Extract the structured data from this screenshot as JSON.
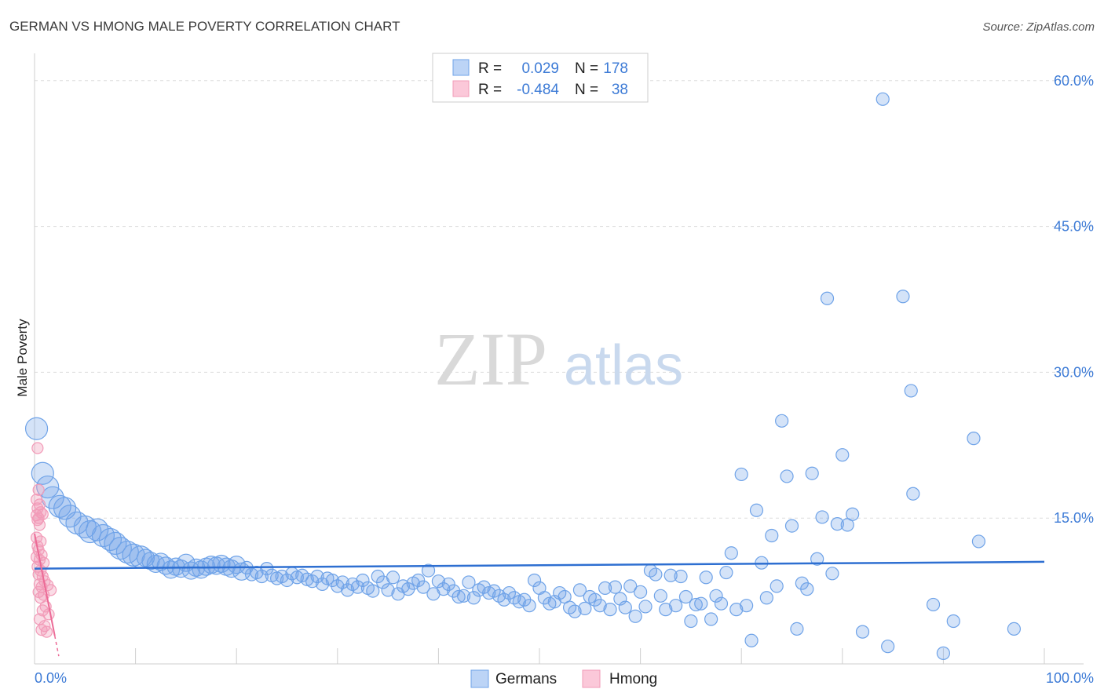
{
  "header": {
    "title": "GERMAN VS HMONG MALE POVERTY CORRELATION CHART",
    "source": "Source: ZipAtlas.com"
  },
  "watermark": {
    "zip": "ZIP",
    "atlas": "atlas"
  },
  "legend": {
    "rows": [
      {
        "r_label": "R =",
        "r_value": "0.029",
        "n_label": "N =",
        "n_value": "178",
        "color": "#6fa3e8"
      },
      {
        "r_label": "R =",
        "r_value": "-0.484",
        "n_label": "N =",
        "n_value": "38",
        "color": "#f29bb8"
      }
    ]
  },
  "bottom_legend": [
    {
      "label": "Germans",
      "color": "#6fa3e8"
    },
    {
      "label": "Hmong",
      "color": "#f29bb8"
    }
  ],
  "chart_data": {
    "type": "scatter",
    "title": "GERMAN VS HMONG MALE POVERTY CORRELATION CHART",
    "xlabel": "",
    "ylabel": "Male Poverty",
    "xlim": [
      0,
      100
    ],
    "ylim": [
      0,
      62
    ],
    "x_tick_labels": [
      "0.0%",
      "100.0%"
    ],
    "y_ticks": [
      15,
      30,
      45,
      60
    ],
    "y_tick_labels": [
      "15.0%",
      "30.0%",
      "45.0%",
      "60.0%"
    ],
    "series": [
      {
        "name": "Germans",
        "color": "#6fa3e8",
        "trend": {
          "x": [
            0,
            100
          ],
          "y": [
            9.8,
            10.5
          ]
        },
        "points": [
          [
            0.2,
            24.2,
            3
          ],
          [
            0.8,
            19.6,
            3
          ],
          [
            1.3,
            18.2,
            3
          ],
          [
            1.8,
            17.1,
            3
          ],
          [
            2.5,
            16.2,
            3
          ],
          [
            3.0,
            16.0,
            3
          ],
          [
            3.5,
            15.2,
            3
          ],
          [
            4.2,
            14.5,
            3
          ],
          [
            5.0,
            14.1,
            3
          ],
          [
            5.5,
            13.6,
            3
          ],
          [
            6.2,
            13.8,
            3
          ],
          [
            6.8,
            13.2,
            3
          ],
          [
            7.5,
            12.8,
            3
          ],
          [
            8.0,
            12.4,
            3
          ],
          [
            8.5,
            11.9,
            3
          ],
          [
            9.2,
            11.5,
            3
          ],
          [
            9.8,
            11.2,
            3
          ],
          [
            10.5,
            11.0,
            3
          ],
          [
            11.0,
            10.9,
            2
          ],
          [
            11.5,
            10.6,
            2
          ],
          [
            12.0,
            10.3,
            2
          ],
          [
            12.5,
            10.5,
            2
          ],
          [
            13.0,
            10.1,
            2
          ],
          [
            13.5,
            9.7,
            2
          ],
          [
            14.0,
            10.0,
            2
          ],
          [
            14.5,
            9.8,
            2
          ],
          [
            15.0,
            10.4,
            2
          ],
          [
            15.5,
            9.6,
            2
          ],
          [
            16.0,
            9.9,
            2
          ],
          [
            16.5,
            9.7,
            2
          ],
          [
            17.0,
            10.0,
            2
          ],
          [
            17.5,
            10.2,
            2
          ],
          [
            18.0,
            10.1,
            2
          ],
          [
            18.5,
            10.3,
            2
          ],
          [
            19.0,
            10.0,
            2
          ],
          [
            19.5,
            9.8,
            2
          ],
          [
            20.0,
            10.2,
            2
          ],
          [
            20.5,
            9.5,
            2
          ],
          [
            21.0,
            9.9,
            1
          ],
          [
            21.5,
            9.2,
            1
          ],
          [
            22.0,
            9.4,
            1
          ],
          [
            22.5,
            9.0,
            1
          ],
          [
            23.0,
            9.8,
            1
          ],
          [
            23.5,
            9.1,
            1
          ],
          [
            24.0,
            8.8,
            1
          ],
          [
            24.5,
            9.0,
            1
          ],
          [
            25.0,
            8.6,
            1
          ],
          [
            25.5,
            9.3,
            1
          ],
          [
            26.0,
            8.9,
            1
          ],
          [
            26.5,
            9.1,
            1
          ],
          [
            27.0,
            8.7,
            1
          ],
          [
            27.5,
            8.5,
            1
          ],
          [
            28.0,
            9.0,
            1
          ],
          [
            28.5,
            8.2,
            1
          ],
          [
            29.0,
            8.8,
            1
          ],
          [
            29.5,
            8.6,
            1
          ],
          [
            30.0,
            8.0,
            1
          ],
          [
            30.5,
            8.4,
            1
          ],
          [
            31.0,
            7.6,
            1
          ],
          [
            31.5,
            8.2,
            1
          ],
          [
            32.0,
            7.9,
            1
          ],
          [
            32.5,
            8.6,
            1
          ],
          [
            33.0,
            7.8,
            1
          ],
          [
            33.5,
            7.5,
            1
          ],
          [
            34.0,
            9.0,
            1
          ],
          [
            34.5,
            8.4,
            1
          ],
          [
            35.0,
            7.6,
            1
          ],
          [
            35.5,
            8.9,
            1
          ],
          [
            36.0,
            7.2,
            1
          ],
          [
            36.5,
            8.0,
            1
          ],
          [
            37.0,
            7.7,
            1
          ],
          [
            37.5,
            8.3,
            1
          ],
          [
            38.0,
            8.6,
            1
          ],
          [
            38.5,
            7.9,
            1
          ],
          [
            39.0,
            9.6,
            1
          ],
          [
            39.5,
            7.2,
            1
          ],
          [
            40.0,
            8.5,
            1
          ],
          [
            40.5,
            7.7,
            1
          ],
          [
            41.0,
            8.2,
            1
          ],
          [
            41.5,
            7.5,
            1
          ],
          [
            42.0,
            6.9,
            1
          ],
          [
            42.5,
            7.0,
            1
          ],
          [
            43.0,
            8.4,
            1
          ],
          [
            43.5,
            6.8,
            1
          ],
          [
            44.0,
            7.6,
            1
          ],
          [
            44.5,
            7.9,
            1
          ],
          [
            45.0,
            7.3,
            1
          ],
          [
            45.5,
            7.5,
            1
          ],
          [
            46.0,
            7.0,
            1
          ],
          [
            46.5,
            6.6,
            1
          ],
          [
            47.0,
            7.3,
            1
          ],
          [
            47.5,
            6.8,
            1
          ],
          [
            48.0,
            6.4,
            1
          ],
          [
            48.5,
            6.6,
            1
          ],
          [
            49.0,
            6.0,
            1
          ],
          [
            49.5,
            8.6,
            1
          ],
          [
            50.0,
            7.8,
            1
          ],
          [
            50.5,
            6.8,
            1
          ],
          [
            51.0,
            6.2,
            1
          ],
          [
            51.5,
            6.4,
            1
          ],
          [
            52.0,
            7.3,
            1
          ],
          [
            52.5,
            6.9,
            1
          ],
          [
            53.0,
            5.8,
            1
          ],
          [
            53.5,
            5.4,
            1
          ],
          [
            54.0,
            7.6,
            1
          ],
          [
            54.5,
            5.7,
            1
          ],
          [
            55.0,
            6.9,
            1
          ],
          [
            55.5,
            6.6,
            1
          ],
          [
            56.0,
            6.0,
            1
          ],
          [
            56.5,
            7.8,
            1
          ],
          [
            57.0,
            5.6,
            1
          ],
          [
            57.5,
            7.9,
            1
          ],
          [
            58.0,
            6.7,
            1
          ],
          [
            58.5,
            5.8,
            1
          ],
          [
            59.0,
            8.0,
            1
          ],
          [
            59.5,
            4.9,
            1
          ],
          [
            60.0,
            7.4,
            1
          ],
          [
            60.5,
            5.9,
            1
          ],
          [
            61.0,
            9.6,
            1
          ],
          [
            61.5,
            9.2,
            1
          ],
          [
            62.0,
            7.0,
            1
          ],
          [
            62.5,
            5.6,
            1
          ],
          [
            63.0,
            9.1,
            1
          ],
          [
            63.5,
            6.0,
            1
          ],
          [
            64.0,
            9.0,
            1
          ],
          [
            64.5,
            6.9,
            1
          ],
          [
            65.0,
            4.4,
            1
          ],
          [
            65.5,
            6.1,
            1
          ],
          [
            66.0,
            6.2,
            1
          ],
          [
            66.5,
            8.9,
            1
          ],
          [
            67.0,
            4.6,
            1
          ],
          [
            67.5,
            7.0,
            1
          ],
          [
            68.0,
            6.2,
            1
          ],
          [
            68.5,
            9.4,
            1
          ],
          [
            69.0,
            11.4,
            1
          ],
          [
            69.5,
            5.6,
            1
          ],
          [
            70.0,
            19.5,
            1
          ],
          [
            70.5,
            6.0,
            1
          ],
          [
            71.0,
            2.4,
            1
          ],
          [
            71.5,
            15.8,
            1
          ],
          [
            72.0,
            10.4,
            1
          ],
          [
            72.5,
            6.8,
            1
          ],
          [
            73.0,
            13.2,
            1
          ],
          [
            73.5,
            8.0,
            1
          ],
          [
            74.0,
            25.0,
            1
          ],
          [
            74.5,
            19.3,
            1
          ],
          [
            75.0,
            14.2,
            1
          ],
          [
            75.5,
            3.6,
            1
          ],
          [
            76.0,
            8.3,
            1
          ],
          [
            76.5,
            7.7,
            1
          ],
          [
            77.0,
            19.6,
            1
          ],
          [
            77.5,
            10.8,
            1
          ],
          [
            78.0,
            15.1,
            1
          ],
          [
            78.5,
            37.6,
            1
          ],
          [
            79.0,
            9.3,
            1
          ],
          [
            79.5,
            14.4,
            1
          ],
          [
            80.0,
            21.5,
            1
          ],
          [
            80.5,
            14.3,
            1
          ],
          [
            81.0,
            15.4,
            1
          ],
          [
            82.0,
            3.3,
            1
          ],
          [
            84.0,
            58.1,
            1
          ],
          [
            84.5,
            1.8,
            1
          ],
          [
            86.0,
            37.8,
            1
          ],
          [
            86.8,
            28.1,
            1
          ],
          [
            87.0,
            17.5,
            1
          ],
          [
            89.0,
            6.1,
            1
          ],
          [
            90.0,
            1.1,
            1
          ],
          [
            91.0,
            4.4,
            1
          ],
          [
            93.0,
            23.2,
            1
          ],
          [
            93.5,
            12.6,
            1
          ],
          [
            97.0,
            3.6,
            1
          ]
        ]
      },
      {
        "name": "Hmong",
        "color": "#f29bb8",
        "trend": {
          "x": [
            0,
            2.0
          ],
          "y": [
            13.4,
            2.9
          ]
        },
        "trend_dashed": {
          "x": [
            2.0,
            2.4
          ],
          "y": [
            2.9,
            0.8
          ]
        },
        "points": [
          [
            0.3,
            22.2,
            1
          ],
          [
            0.4,
            17.9,
            1
          ],
          [
            0.2,
            16.9,
            1
          ],
          [
            0.5,
            16.4,
            1
          ],
          [
            0.3,
            16.0,
            1
          ],
          [
            0.6,
            15.6,
            1
          ],
          [
            0.2,
            15.3,
            1
          ],
          [
            0.4,
            15.0,
            1
          ],
          [
            0.8,
            15.4,
            1
          ],
          [
            0.3,
            14.8,
            1
          ],
          [
            0.5,
            14.3,
            1
          ],
          [
            0.2,
            13.0,
            1
          ],
          [
            0.6,
            12.6,
            1
          ],
          [
            0.3,
            12.1,
            1
          ],
          [
            0.4,
            11.7,
            1
          ],
          [
            0.7,
            11.2,
            1
          ],
          [
            0.2,
            11.0,
            1
          ],
          [
            0.5,
            10.7,
            1
          ],
          [
            0.9,
            10.4,
            1
          ],
          [
            0.3,
            10.0,
            1
          ],
          [
            0.6,
            9.6,
            1
          ],
          [
            0.4,
            9.2,
            1
          ],
          [
            0.8,
            9.0,
            1
          ],
          [
            1.0,
            8.5,
            1
          ],
          [
            0.5,
            8.2,
            1
          ],
          [
            1.3,
            8.1,
            1
          ],
          [
            0.7,
            7.9,
            1
          ],
          [
            1.6,
            7.6,
            1
          ],
          [
            0.4,
            7.4,
            1
          ],
          [
            0.9,
            7.1,
            1
          ],
          [
            0.6,
            6.8,
            1
          ],
          [
            1.1,
            5.9,
            1
          ],
          [
            0.8,
            5.5,
            1
          ],
          [
            1.4,
            5.1,
            1
          ],
          [
            0.5,
            4.6,
            1
          ],
          [
            1.0,
            3.9,
            1
          ],
          [
            0.7,
            3.5,
            1
          ],
          [
            1.2,
            3.3,
            1
          ]
        ]
      }
    ]
  }
}
